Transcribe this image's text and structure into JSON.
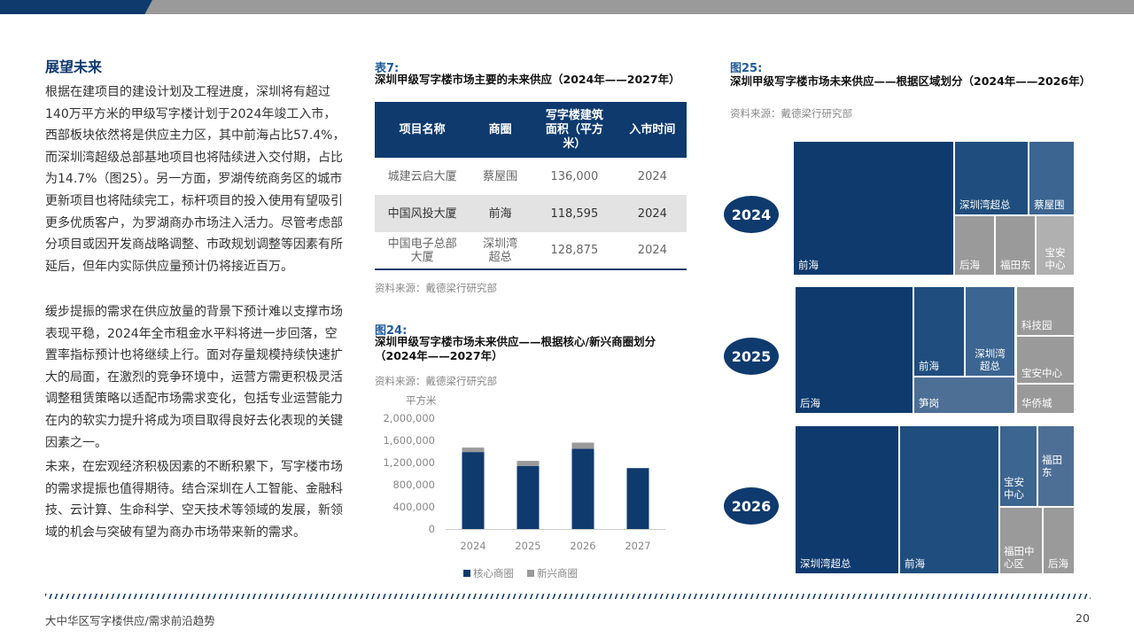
{
  "left": {
    "title": "展望未来",
    "paragraphs": [
      "根据在建项目的建设计划及工程进度，深圳将有超过140万平方米的甲级写字楼计划于2024年竣工入市，西部板块依然将是供应主力区，其中前海占比57.4%，而深圳湾超级总部基地项目也将陆续进入交付期，占比为14.7%（图25）。另一方面，罗湖传统商务区的城市更新项目也将陆续完工，标杆项目的投入使用有望吸引更多优质客户，为罗湖商办市场注入活力。尽管考虑部分项目或因开发商战略调整、市政规划调整等因素有所延后，但年内实际供应量预计仍将接近百万。",
      "缓步提振的需求在供应放量的背景下预计难以支撑市场表现平稳，2024年全市租金水平料将进一步回落，空置率指标预计也将继续上行。面对存量规模持续快速扩大的局面，在激烈的竞争环境中，运营方需更积极灵活调整租赁策略以适配市场需求变化，包括专业运营能力在内的软实力提升将成为项目取得良好去化表现的关键因素之一。",
      "未来，在宏观经济积极因素的不断积累下，写字楼市场的需求提振也值得期待。结合深圳在人工智能、金融科技、云计算、生命科学、空天技术等领域的发展，新领域的机会与突破有望为商办市场带来新的需求。"
    ]
  },
  "table7": {
    "label": "表7:",
    "title": "深圳甲级写字楼市场主要的未来供应（2024年——2027年）",
    "headers": [
      "项目名称",
      "商圈",
      "写字楼建筑面积（平方米）",
      "入市时间"
    ],
    "rows": [
      [
        "城建云启大厦",
        "蔡屋围",
        "136,000",
        "2024"
      ],
      [
        "中国风投大厦",
        "前海",
        "118,595",
        "2024"
      ],
      [
        "中国电子总部大厦",
        "深圳湾超总",
        "128,875",
        "2024"
      ]
    ],
    "source": "资料来源：戴德梁行研究部"
  },
  "fig24": {
    "label": "图24:",
    "title_line1": "深圳甲级写字楼市场未来供应——根据核心/新兴商圈划分",
    "title_line2": "（2024年——2027年）",
    "source": "资料来源：戴德梁行研究部"
  },
  "chart_data": {
    "type": "bar",
    "stacked": true,
    "ylabel": "平方米",
    "ylim": [
      0,
      2000000
    ],
    "yticks": [
      "0",
      "400,000",
      "800,000",
      "1,200,000",
      "1,600,000",
      "2,000,000"
    ],
    "categories": [
      "2024",
      "2025",
      "2026",
      "2027"
    ],
    "series": [
      {
        "name": "核心商圈",
        "color": "#0e3a6e",
        "values": [
          1390000,
          1140000,
          1450000,
          1100000
        ]
      },
      {
        "name": "新兴商圈",
        "color": "#9a9a9a",
        "values": [
          80000,
          90000,
          110000,
          0
        ]
      }
    ],
    "legend_position": "bottom"
  },
  "fig25": {
    "label": "图25:",
    "title": "深圳甲级写字楼市场未来供应——根据区域划分（2024年——2026年）",
    "source": "资料来源：戴德梁行研究部",
    "years": [
      "2024",
      "2025",
      "2026"
    ],
    "tiles2024": [
      "前海",
      "深圳湾超总",
      "蔡屋围",
      "后海",
      "福田东",
      "宝安中心"
    ],
    "tiles2025": [
      "后海",
      "前海",
      "深圳湾超总",
      "科技园",
      "宝安中心",
      "笋岗",
      "华侨城"
    ],
    "tiles2026": [
      "深圳湾超总",
      "前海",
      "宝安中心",
      "福田东",
      "福田中心区",
      "后海"
    ]
  },
  "colors": {
    "navy": "#0e3a6e",
    "mid_blue": "#1f4e7e",
    "steel": "#3c6591",
    "slate": "#4e6f95",
    "gray": "#9a9a9a"
  },
  "footer": {
    "text": "大中华区写字楼供应/需求前沿趋势",
    "page": "20"
  }
}
